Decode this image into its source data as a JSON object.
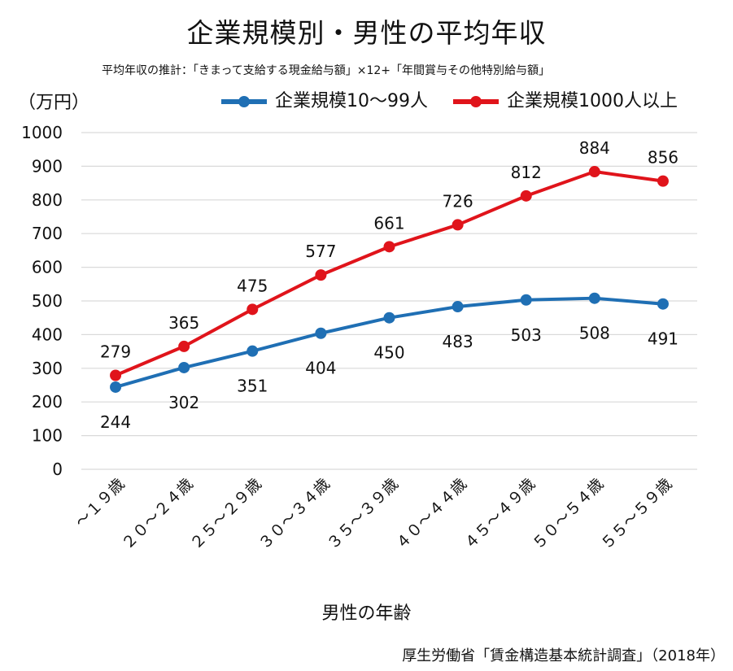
{
  "chart_data": {
    "type": "line",
    "title": "企業規模別・男性の平均年収",
    "subtitle": "平均年収の推計：「きまって支給する現金給与額」×12+「年間賞与その他特別給与額」",
    "ylabel": "（万円）",
    "xlabel": "男性の年齢",
    "ylim": [
      0,
      1000
    ],
    "yticks": [
      0,
      100,
      200,
      300,
      400,
      500,
      600,
      700,
      800,
      900,
      1000
    ],
    "grid": true,
    "legend_position": "top",
    "categories": [
      "～１９歳",
      "２０～２４歳",
      "２５～２９歳",
      "３０～３４歳",
      "３５～３９歳",
      "４０～４４歳",
      "４５～４９歳",
      "５０～５４歳",
      "５５～５９歳"
    ],
    "series": [
      {
        "name": "企業規模10～99人",
        "color": "#1f6fb4",
        "values": [
          244,
          302,
          351,
          404,
          450,
          483,
          503,
          508,
          491
        ],
        "label_position": "below"
      },
      {
        "name": "企業規模1000人以上",
        "color": "#e0141b",
        "values": [
          279,
          365,
          475,
          577,
          661,
          726,
          812,
          884,
          856
        ],
        "label_position": "above"
      }
    ]
  },
  "source": "厚生労働省「賃金構造基本統計調査」（2018年）"
}
